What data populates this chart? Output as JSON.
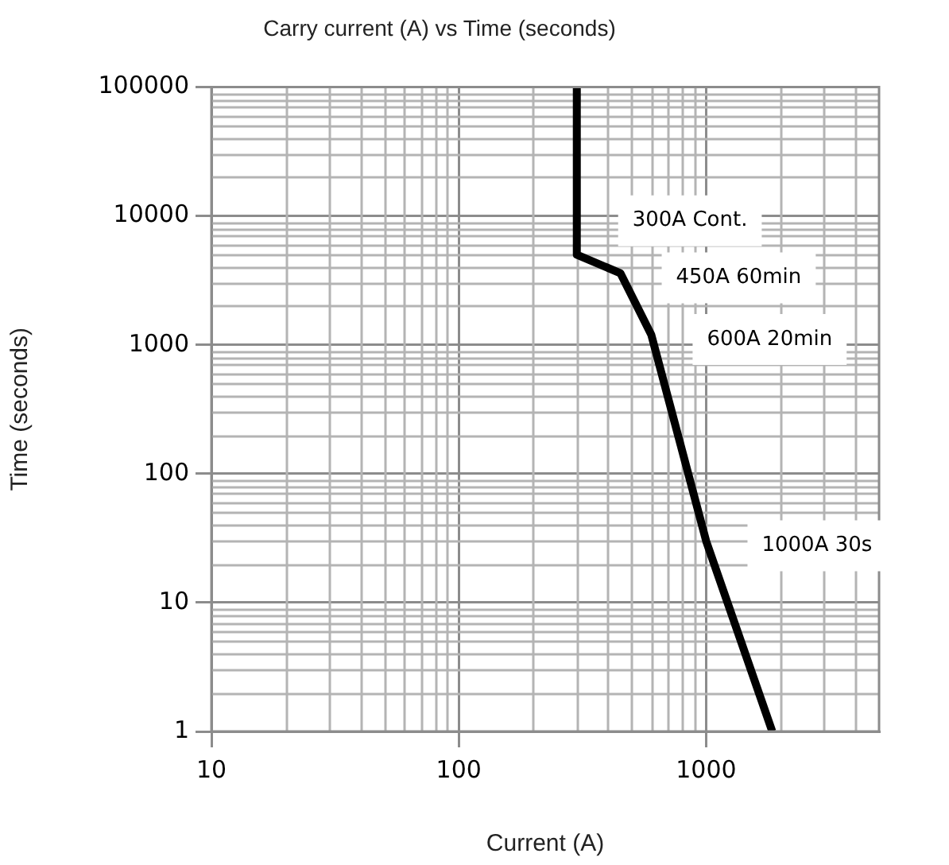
{
  "chart_data": {
    "type": "line",
    "title": "Carry current (A) vs Time (seconds)",
    "xlabel": "Current (A)",
    "ylabel": "Time (seconds)",
    "log": "xy",
    "grid": true,
    "legend": false,
    "xlim": [
      10,
      5000
    ],
    "xticks": [
      10,
      100,
      1000
    ],
    "ylim": [
      1,
      100000
    ],
    "yticks": [
      1,
      10,
      100,
      1000,
      10000,
      100000
    ],
    "series": [
      {
        "color": "#000000",
        "x": [
          300,
          300,
          450,
          600,
          1000,
          1850
        ],
        "values": [
          100000,
          5000,
          3600,
          1200,
          30,
          1
        ]
      }
    ],
    "annotations": [
      {
        "text": "300A Cont.",
        "x": 300,
        "y": 10000
      },
      {
        "text": "450A 60min",
        "x": 450,
        "y": 3600
      },
      {
        "text": "600A 20min",
        "x": 600,
        "y": 1200
      },
      {
        "text": "1000A 30s",
        "x": 1000,
        "y": 30
      }
    ]
  }
}
